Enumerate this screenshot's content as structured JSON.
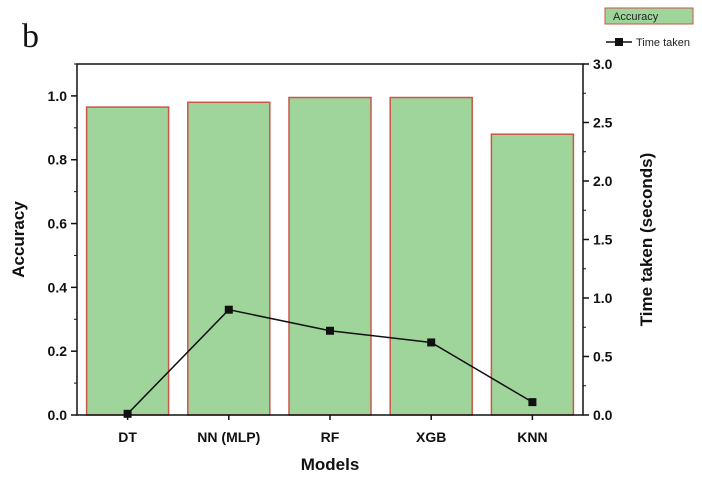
{
  "panel_label": "b",
  "chart_data": {
    "type": "bar",
    "categories": [
      "DT",
      "NN (MLP)",
      "RF",
      "XGB",
      "KNN"
    ],
    "series": [
      {
        "name": "Accuracy",
        "type": "bar",
        "axis": "left",
        "values": [
          0.965,
          0.98,
          0.995,
          0.995,
          0.88
        ]
      },
      {
        "name": "Time taken",
        "type": "line",
        "axis": "right",
        "values": [
          0.01,
          0.9,
          0.72,
          0.62,
          0.11
        ]
      }
    ],
    "xlabel": "Models",
    "ylabel": "Accuracy",
    "y2label": "Time taken (seconds)",
    "ylim": [
      0,
      1.1
    ],
    "y2lim": [
      0,
      3.0
    ],
    "yticks": [
      "0.0",
      "0.2",
      "0.4",
      "0.6",
      "0.8",
      "1.0"
    ],
    "y2ticks": [
      "0.0",
      "0.5",
      "1.0",
      "1.5",
      "2.0",
      "2.5",
      "3.0"
    ],
    "legend_placement": "top-right",
    "grid": false,
    "colors": {
      "bar_fill": "#9fd49b",
      "bar_edge": "#c9564a",
      "line": "#111111"
    }
  }
}
